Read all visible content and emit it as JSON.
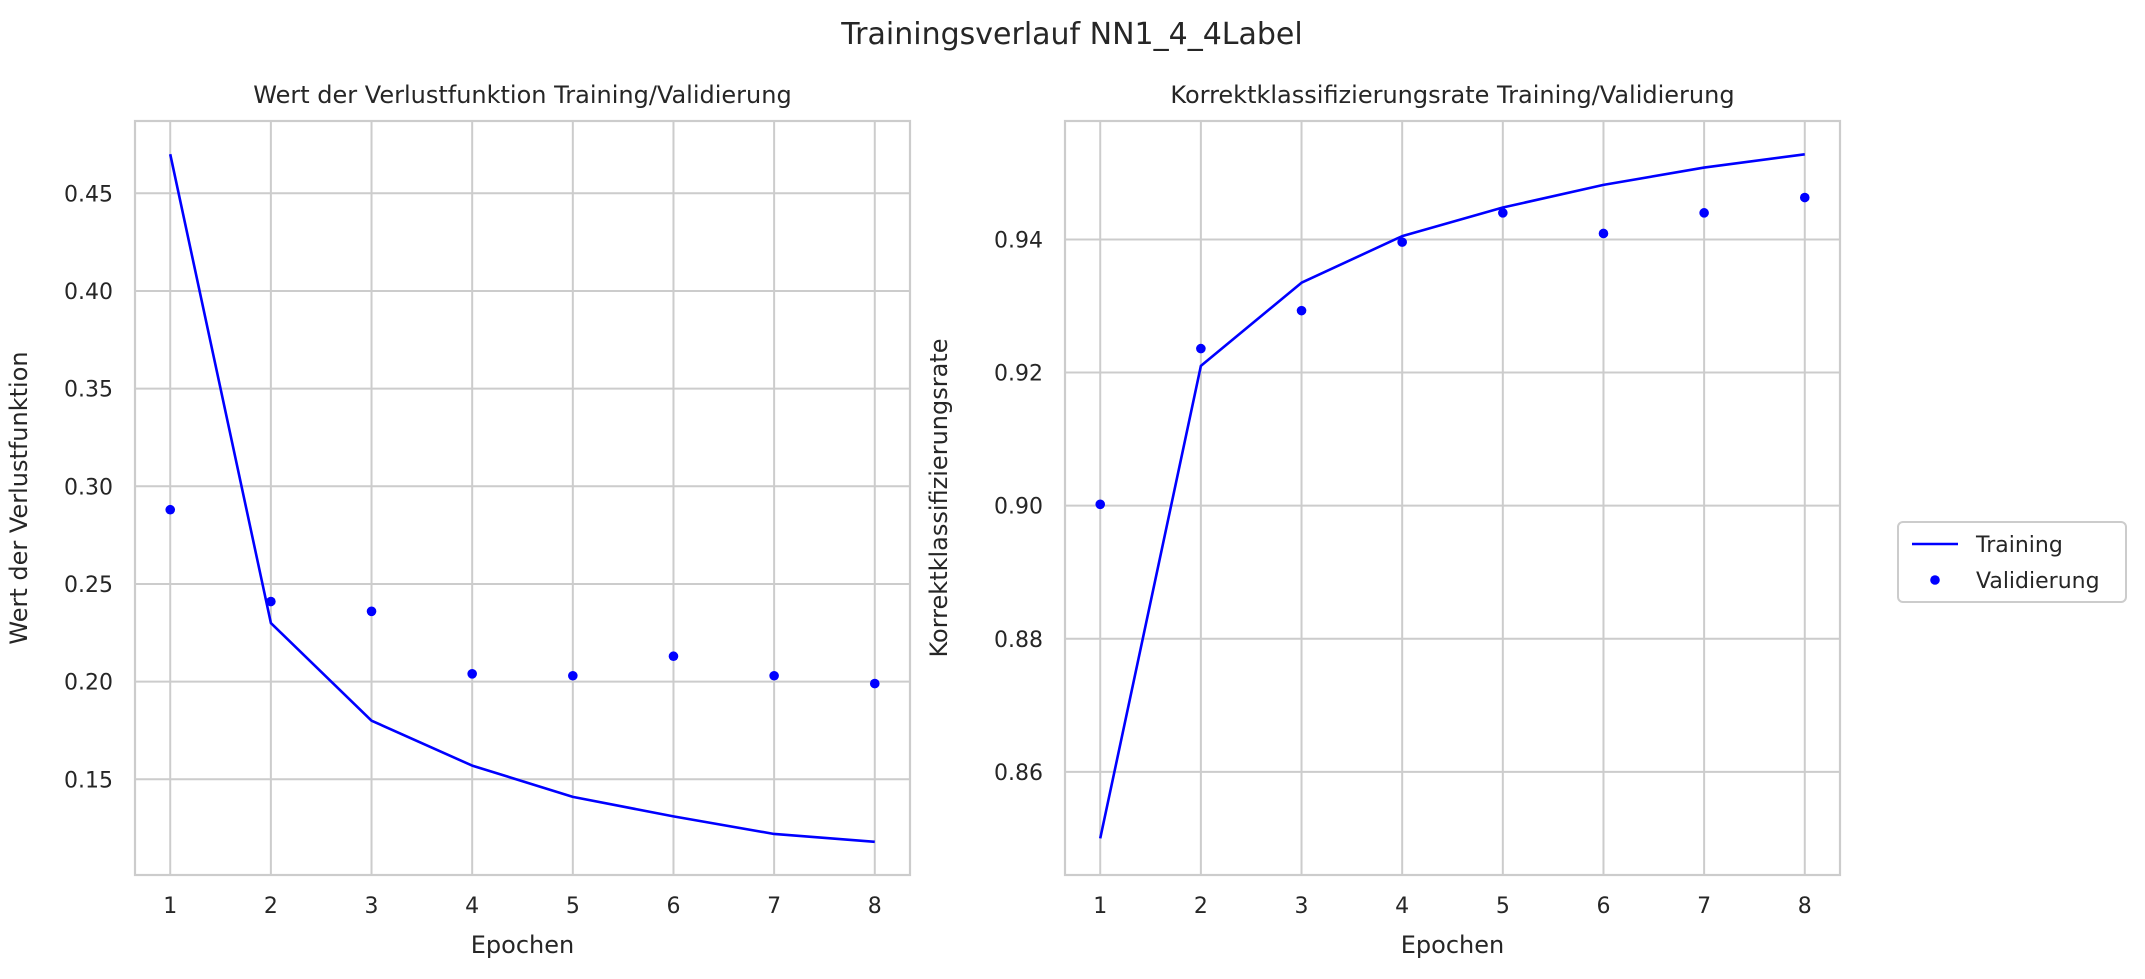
{
  "figure": {
    "title": "Trainingsverlauf NN1_4_4Label"
  },
  "legend": {
    "placement": "right-center",
    "entries": [
      {
        "label": "Training",
        "style": "line",
        "color": "#0000ff"
      },
      {
        "label": "Validierung",
        "style": "marker",
        "color": "#0000ff"
      }
    ]
  },
  "chart_data": [
    {
      "type": "line",
      "title": "Wert der Verlustfunktion Training/Validierung",
      "xlabel": "Epochen",
      "ylabel": "Wert der Verlustfunktion",
      "x": [
        1,
        2,
        3,
        4,
        5,
        6,
        7,
        8
      ],
      "xticks": [
        "1",
        "2",
        "3",
        "4",
        "5",
        "6",
        "7",
        "8"
      ],
      "yticks": [
        "0.15",
        "0.20",
        "0.25",
        "0.30",
        "0.35",
        "0.40",
        "0.45"
      ],
      "xlim": [
        0.65,
        8.35
      ],
      "ylim": [
        0.101,
        0.487
      ],
      "grid": true,
      "series": [
        {
          "name": "Training",
          "style": "line",
          "color": "#0000ff",
          "values": [
            0.47,
            0.23,
            0.18,
            0.157,
            0.141,
            0.131,
            0.122,
            0.118
          ]
        },
        {
          "name": "Validierung",
          "style": "marker",
          "color": "#0000ff",
          "values": [
            0.288,
            0.241,
            0.236,
            0.204,
            0.203,
            0.213,
            0.203,
            0.199
          ]
        }
      ]
    },
    {
      "type": "line",
      "title": "Korrektklassifizierungsrate Training/Validierung",
      "xlabel": "Epochen",
      "ylabel": "Korrektklassifizierungsrate",
      "x": [
        1,
        2,
        3,
        4,
        5,
        6,
        7,
        8
      ],
      "xticks": [
        "1",
        "2",
        "3",
        "4",
        "5",
        "6",
        "7",
        "8"
      ],
      "yticks": [
        "0.86",
        "0.88",
        "0.90",
        "0.92",
        "0.94"
      ],
      "xlim": [
        0.65,
        8.35
      ],
      "ylim": [
        0.8445,
        0.9578
      ],
      "grid": true,
      "series": [
        {
          "name": "Training",
          "style": "line",
          "color": "#0000ff",
          "values": [
            0.85,
            0.921,
            0.9335,
            0.9405,
            0.9448,
            0.9482,
            0.9508,
            0.9528
          ]
        },
        {
          "name": "Validierung",
          "style": "marker",
          "color": "#0000ff",
          "values": [
            0.9002,
            0.9236,
            0.9293,
            0.9396,
            0.944,
            0.9409,
            0.944,
            0.9463
          ]
        }
      ]
    }
  ]
}
